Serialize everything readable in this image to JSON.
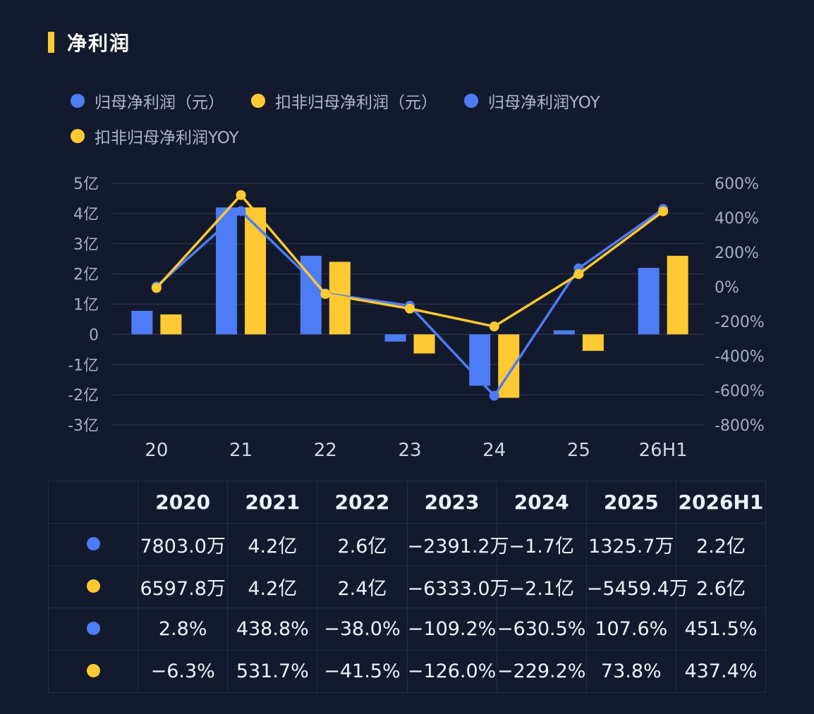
{
  "title": "净利润",
  "colors": {
    "blue": "#4d7cf5",
    "yellow": "#ffc933",
    "grid": "#2b3350",
    "axis_text": "#a7aec0"
  },
  "legend": [
    {
      "label": "归母净利润（元）",
      "color": "#4d7cf5"
    },
    {
      "label": "扣非归母净利润（元）",
      "color": "#ffc933"
    },
    {
      "label": "归母净利润YOY",
      "color": "#4d7cf5"
    },
    {
      "label": "扣非归母净利润YOY",
      "color": "#ffc933"
    }
  ],
  "chart_data": {
    "type": "bar",
    "categories": [
      "20",
      "21",
      "22",
      "23",
      "24",
      "25",
      "26H1"
    ],
    "series": [
      {
        "name": "归母净利润（元）",
        "type": "bar",
        "axis": "left",
        "color": "#4d7cf5",
        "values": [
          0.78,
          4.2,
          2.6,
          -0.239,
          -1.7,
          0.133,
          2.2
        ]
      },
      {
        "name": "扣非归母净利润（元）",
        "type": "bar",
        "axis": "left",
        "color": "#ffc933",
        "values": [
          0.66,
          4.2,
          2.4,
          -0.633,
          -2.1,
          -0.546,
          2.6
        ]
      },
      {
        "name": "归母净利润YOY",
        "type": "line",
        "axis": "right",
        "color": "#4d7cf5",
        "values": [
          2.8,
          438.8,
          -38.0,
          -109.2,
          -630.5,
          107.6,
          451.5
        ]
      },
      {
        "name": "扣非归母净利润YOY",
        "type": "line",
        "axis": "right",
        "color": "#ffc933",
        "values": [
          -6.3,
          531.7,
          -41.5,
          -126.0,
          -229.2,
          73.8,
          437.4
        ]
      }
    ],
    "left_axis": {
      "unit": "亿",
      "ylim": [
        -3,
        5
      ],
      "ticks": [
        "5亿",
        "4亿",
        "3亿",
        "2亿",
        "1亿",
        "0",
        "-1亿",
        "-2亿",
        "-3亿"
      ]
    },
    "right_axis": {
      "unit": "%",
      "ylim": [
        -800,
        600
      ],
      "ticks": [
        "600%",
        "400%",
        "200%",
        "0%",
        "-200%",
        "-400%",
        "-600%",
        "-800%"
      ]
    },
    "grid": true,
    "legend_position": "top-left"
  },
  "table": {
    "headers": [
      "2020",
      "2021",
      "2022",
      "2023",
      "2024",
      "2025",
      "2026H1"
    ],
    "rows": [
      {
        "color": "#4d7cf5",
        "cells": [
          "7803.0万",
          "4.2亿",
          "2.6亿",
          "−2391.2万",
          "−1.7亿",
          "1325.7万",
          "2.2亿"
        ]
      },
      {
        "color": "#ffc933",
        "cells": [
          "6597.8万",
          "4.2亿",
          "2.4亿",
          "−6333.0万",
          "−2.1亿",
          "−5459.4万",
          "2.6亿"
        ]
      },
      {
        "color": "#4d7cf5",
        "cells": [
          "2.8%",
          "438.8%",
          "−38.0%",
          "−109.2%",
          "−630.5%",
          "107.6%",
          "451.5%"
        ]
      },
      {
        "color": "#ffc933",
        "cells": [
          "−6.3%",
          "531.7%",
          "−41.5%",
          "−126.0%",
          "−229.2%",
          "73.8%",
          "437.4%"
        ]
      }
    ]
  }
}
